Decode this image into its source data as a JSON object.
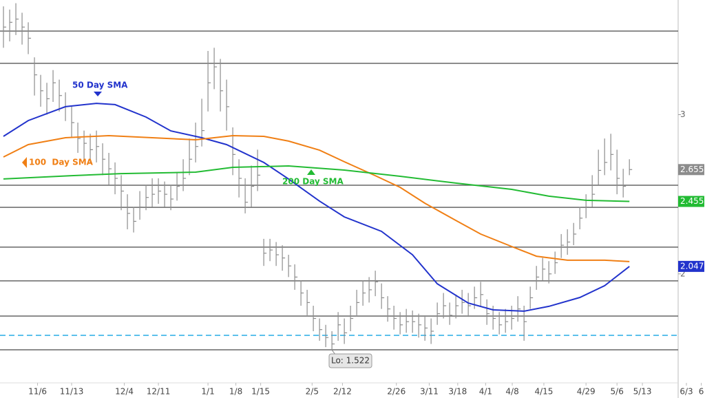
{
  "chart_data": {
    "type": "ohlc",
    "xlim": [
      -0.56,
      113.2
    ],
    "ylim": [
      1.32,
      3.72
    ],
    "yticks": [
      2,
      3
    ],
    "xticks": [
      {
        "value": 5.5,
        "label": "11/6"
      },
      {
        "value": 11,
        "label": "11/13"
      },
      {
        "value": 19.5,
        "label": "12/4"
      },
      {
        "value": 25,
        "label": "12/11"
      },
      {
        "value": 33,
        "label": "1/1"
      },
      {
        "value": 37.5,
        "label": "1/8"
      },
      {
        "value": 41.5,
        "label": "1/15"
      },
      {
        "value": 49.8,
        "label": "2/5"
      },
      {
        "value": 54.7,
        "label": "2/12"
      },
      {
        "value": 63.4,
        "label": "2/26"
      },
      {
        "value": 68.7,
        "label": "3/11"
      },
      {
        "value": 73.3,
        "label": "3/18"
      },
      {
        "value": 77.8,
        "label": "4/1"
      },
      {
        "value": 82.1,
        "label": "4/8"
      },
      {
        "value": 87.2,
        "label": "4/15"
      },
      {
        "value": 94,
        "label": "4/29"
      },
      {
        "value": 99,
        "label": "5/6"
      },
      {
        "value": 103.1,
        "label": "5/13"
      },
      {
        "value": 110.2,
        "label": "6/3"
      },
      {
        "value": 112.6,
        "label": "6"
      }
    ],
    "levels": [
      3.525,
      3.322,
      2.557,
      2.418,
      2.168,
      1.956,
      1.735,
      1.523
    ],
    "level_color": "#666666",
    "dashed_level": 1.614,
    "dashed_color": "#5bc0eb",
    "bar_color": "#8c8c8c",
    "bars": {
      "close": [
        3.55,
        3.58,
        3.6,
        3.55,
        3.48,
        3.25,
        3.15,
        3.1,
        3.2,
        3.12,
        3.05,
        2.95,
        2.85,
        2.82,
        2.78,
        2.8,
        2.72,
        2.66,
        2.6,
        2.52,
        2.38,
        2.33,
        2.42,
        2.48,
        2.5,
        2.52,
        2.5,
        2.47,
        2.55,
        2.6,
        2.72,
        2.8,
        2.9,
        3.2,
        3.3,
        3.15,
        3.05,
        2.75,
        2.6,
        2.45,
        2.55,
        2.62,
        2.13,
        2.15,
        2.12,
        2.1,
        2.05,
        1.98,
        1.88,
        1.82,
        1.72,
        1.65,
        1.6,
        1.56,
        1.68,
        1.63,
        1.72,
        1.82,
        1.88,
        1.9,
        1.95,
        1.85,
        1.78,
        1.72,
        1.68,
        1.7,
        1.7,
        1.68,
        1.66,
        1.64,
        1.75,
        1.8,
        1.74,
        1.8,
        1.82,
        1.8,
        1.85,
        1.87,
        1.75,
        1.72,
        1.68,
        1.7,
        1.72,
        1.78,
        1.7,
        1.85,
        1.98,
        2.03,
        2.0,
        2.07,
        2.18,
        2.2,
        2.25,
        2.35,
        2.42,
        2.5,
        2.65,
        2.7,
        2.75,
        2.6,
        2.55,
        2.655
      ],
      "high": [
        3.68,
        3.66,
        3.7,
        3.64,
        3.58,
        3.36,
        3.25,
        3.2,
        3.28,
        3.22,
        3.14,
        3.05,
        2.95,
        2.9,
        2.88,
        2.9,
        2.82,
        2.76,
        2.7,
        2.62,
        2.5,
        2.42,
        2.52,
        2.56,
        2.6,
        2.6,
        2.58,
        2.56,
        2.64,
        2.72,
        2.85,
        2.95,
        3.1,
        3.4,
        3.42,
        3.35,
        3.22,
        2.92,
        2.72,
        2.6,
        2.68,
        2.78,
        2.22,
        2.22,
        2.2,
        2.18,
        2.12,
        2.06,
        1.96,
        1.9,
        1.8,
        1.72,
        1.68,
        1.64,
        1.76,
        1.72,
        1.8,
        1.9,
        1.96,
        1.98,
        2.02,
        1.94,
        1.86,
        1.8,
        1.76,
        1.78,
        1.77,
        1.75,
        1.74,
        1.72,
        1.82,
        1.88,
        1.82,
        1.87,
        1.9,
        1.88,
        1.92,
        1.95,
        1.84,
        1.8,
        1.76,
        1.78,
        1.8,
        1.86,
        1.8,
        1.92,
        2.05,
        2.1,
        2.08,
        2.14,
        2.25,
        2.28,
        2.32,
        2.42,
        2.5,
        2.62,
        2.78,
        2.85,
        2.88,
        2.78,
        2.66,
        2.72
      ],
      "low": [
        3.42,
        3.46,
        3.5,
        3.44,
        3.38,
        3.12,
        3.05,
        3.0,
        3.08,
        3.02,
        2.96,
        2.86,
        2.76,
        2.72,
        2.7,
        2.7,
        2.62,
        2.56,
        2.5,
        2.4,
        2.28,
        2.26,
        2.34,
        2.4,
        2.42,
        2.44,
        2.42,
        2.4,
        2.46,
        2.52,
        2.62,
        2.7,
        2.8,
        3.02,
        3.16,
        3.02,
        2.9,
        2.62,
        2.48,
        2.38,
        2.42,
        2.52,
        2.05,
        2.08,
        2.05,
        2.02,
        1.98,
        1.9,
        1.8,
        1.74,
        1.64,
        1.58,
        1.54,
        1.522,
        1.58,
        1.56,
        1.64,
        1.74,
        1.8,
        1.82,
        1.86,
        1.78,
        1.7,
        1.65,
        1.62,
        1.63,
        1.63,
        1.6,
        1.58,
        1.56,
        1.68,
        1.72,
        1.68,
        1.72,
        1.75,
        1.73,
        1.78,
        1.8,
        1.68,
        1.65,
        1.62,
        1.63,
        1.65,
        1.7,
        1.58,
        1.78,
        1.9,
        1.96,
        1.94,
        2.0,
        2.1,
        2.12,
        2.18,
        2.28,
        2.35,
        2.42,
        2.56,
        2.62,
        2.65,
        2.5,
        2.48,
        2.62
      ]
    },
    "series": [
      {
        "name": "50 Day SMA",
        "color": "#2233cc",
        "x": [
          0,
          4,
          10,
          15,
          18,
          23,
          27,
          32,
          36,
          42,
          46,
          51,
          55,
          61,
          66,
          70,
          75,
          79,
          84,
          88,
          93,
          97,
          101
        ],
        "values": [
          2.864,
          2.963,
          3.05,
          3.071,
          3.063,
          2.985,
          2.898,
          2.855,
          2.812,
          2.7,
          2.596,
          2.457,
          2.358,
          2.267,
          2.12,
          1.938,
          1.817,
          1.774,
          1.766,
          1.796,
          1.852,
          1.926,
          2.047
        ]
      },
      {
        "name": "100  Day SMA",
        "color": "#f07f14",
        "x": [
          0,
          4,
          10,
          17,
          24,
          31,
          37,
          42,
          46,
          51,
          55,
          60,
          64,
          68,
          73,
          77,
          82,
          86,
          91,
          97,
          101
        ],
        "values": [
          2.734,
          2.812,
          2.855,
          2.868,
          2.855,
          2.842,
          2.868,
          2.864,
          2.834,
          2.777,
          2.704,
          2.617,
          2.544,
          2.444,
          2.336,
          2.25,
          2.172,
          2.111,
          2.086,
          2.086,
          2.077
        ]
      },
      {
        "name": "200 Day SMA",
        "color": "#22bb33",
        "x": [
          0,
          11,
          19,
          31,
          37,
          46,
          55,
          64,
          73,
          82,
          88,
          94,
          101
        ],
        "values": [
          2.596,
          2.617,
          2.63,
          2.639,
          2.669,
          2.678,
          2.652,
          2.613,
          2.57,
          2.531,
          2.488,
          2.462,
          2.455
        ]
      }
    ],
    "price_tags": [
      {
        "value": 2.655,
        "color": "#8c8c8c"
      },
      {
        "value": 2.455,
        "color": "#22bb33"
      },
      {
        "value": 2.047,
        "color": "#2233cc"
      }
    ],
    "low_marker": {
      "value": 1.522,
      "label": "Lo: 1.522"
    }
  }
}
